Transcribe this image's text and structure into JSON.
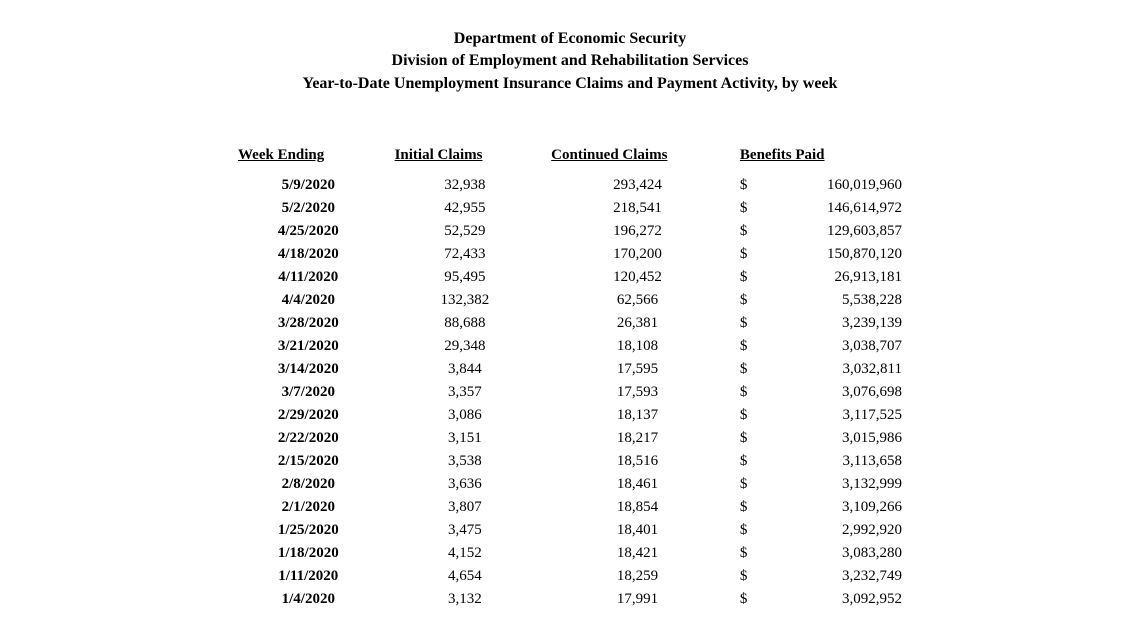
{
  "header": {
    "line1": "Department of Economic Security",
    "line2": "Division of Employment and Rehabilitation Services",
    "line3": "Year-to-Date Unemployment Insurance Claims and Payment Activity, by week"
  },
  "table": {
    "columns": {
      "week_ending": "Week Ending",
      "initial_claims": "Initial Claims",
      "continued_claims": "Continued Claims",
      "benefits_paid": "Benefits Paid"
    },
    "currency_symbol": "$",
    "rows": [
      {
        "week": "5/9/2020",
        "initial": "32,938",
        "continued": "293,424",
        "benefits": "160,019,960"
      },
      {
        "week": "5/2/2020",
        "initial": "42,955",
        "continued": "218,541",
        "benefits": "146,614,972"
      },
      {
        "week": "4/25/2020",
        "initial": "52,529",
        "continued": "196,272",
        "benefits": "129,603,857"
      },
      {
        "week": "4/18/2020",
        "initial": "72,433",
        "continued": "170,200",
        "benefits": "150,870,120"
      },
      {
        "week": "4/11/2020",
        "initial": "95,495",
        "continued": "120,452",
        "benefits": "26,913,181"
      },
      {
        "week": "4/4/2020",
        "initial": "132,382",
        "continued": "62,566",
        "benefits": "5,538,228"
      },
      {
        "week": "3/28/2020",
        "initial": "88,688",
        "continued": "26,381",
        "benefits": "3,239,139"
      },
      {
        "week": "3/21/2020",
        "initial": "29,348",
        "continued": "18,108",
        "benefits": "3,038,707"
      },
      {
        "week": "3/14/2020",
        "initial": "3,844",
        "continued": "17,595",
        "benefits": "3,032,811"
      },
      {
        "week": "3/7/2020",
        "initial": "3,357",
        "continued": "17,593",
        "benefits": "3,076,698"
      },
      {
        "week": "2/29/2020",
        "initial": "3,086",
        "continued": "18,137",
        "benefits": "3,117,525"
      },
      {
        "week": "2/22/2020",
        "initial": "3,151",
        "continued": "18,217",
        "benefits": "3,015,986"
      },
      {
        "week": "2/15/2020",
        "initial": "3,538",
        "continued": "18,516",
        "benefits": "3,113,658"
      },
      {
        "week": "2/8/2020",
        "initial": "3,636",
        "continued": "18,461",
        "benefits": "3,132,999"
      },
      {
        "week": "2/1/2020",
        "initial": "3,807",
        "continued": "18,854",
        "benefits": "3,109,266"
      },
      {
        "week": "1/25/2020",
        "initial": "3,475",
        "continued": "18,401",
        "benefits": "2,992,920"
      },
      {
        "week": "1/18/2020",
        "initial": "4,152",
        "continued": "18,421",
        "benefits": "3,083,280"
      },
      {
        "week": "1/11/2020",
        "initial": "4,654",
        "continued": "18,259",
        "benefits": "3,232,749"
      },
      {
        "week": "1/4/2020",
        "initial": "3,132",
        "continued": "17,991",
        "benefits": "3,092,952"
      }
    ]
  },
  "style": {
    "background_color": "#ffffff",
    "text_color": "#000000",
    "font_family": "Times New Roman",
    "header_fontsize_pt": 12,
    "body_fontsize_pt": 11
  }
}
